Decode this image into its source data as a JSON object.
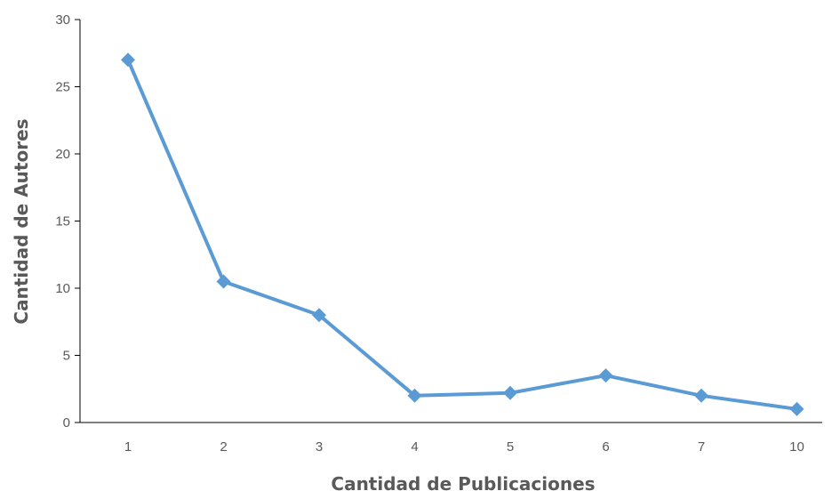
{
  "chart_data": {
    "type": "line",
    "title": "",
    "xlabel": "Cantidad de Publicaciones",
    "ylabel": "Cantidad de Autores",
    "categories": [
      "1",
      "2",
      "3",
      "4",
      "5",
      "6",
      "7",
      "10"
    ],
    "series": [
      {
        "values": [
          27,
          10.5,
          8,
          2,
          2.2,
          3.5,
          2,
          1
        ]
      }
    ],
    "ylim": [
      0,
      30
    ],
    "yticks": [
      0,
      5,
      10,
      15,
      20,
      25,
      30
    ],
    "grid": false,
    "legend": "none",
    "marker": "diamond",
    "color": "#5b9bd5",
    "axis_color": "#000000"
  }
}
